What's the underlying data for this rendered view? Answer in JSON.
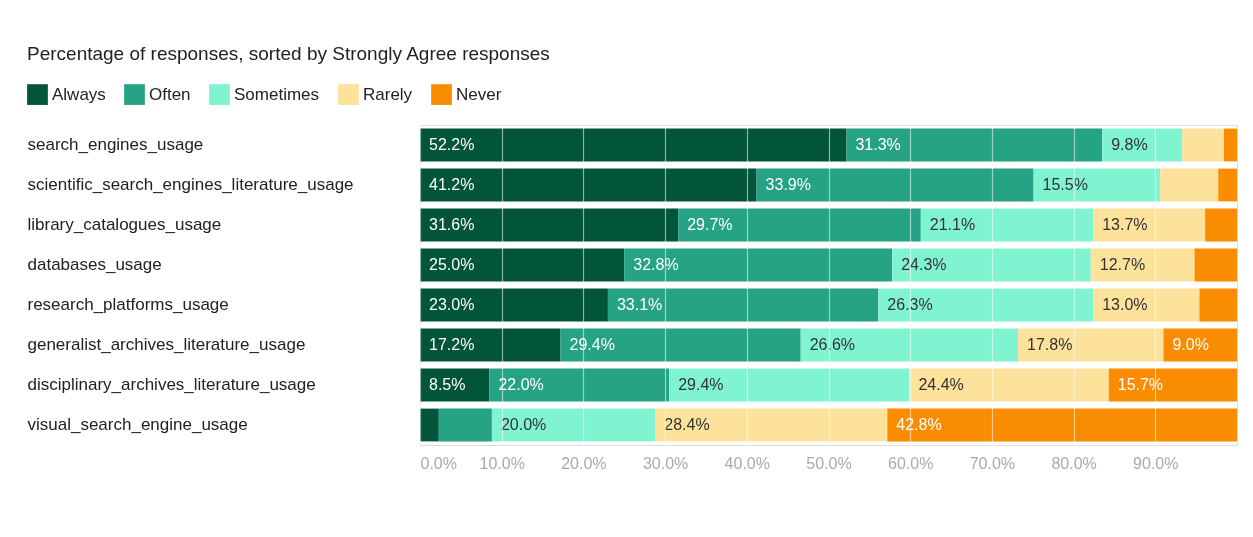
{
  "chart_data": {
    "type": "bar",
    "orientation": "horizontal",
    "stacked": true,
    "title": "Percentage of responses, sorted by Strongly Agree responses",
    "categories": [
      "search_engines_usage",
      "scientific_search_engines_literature_usage",
      "library_catalogues_usage",
      "databases_usage",
      "research_platforms_usage",
      "generalist_archives_literature_usage",
      "disciplinary_archives_literature_usage",
      "visual_search_engine_usage"
    ],
    "series": [
      {
        "name": "Always",
        "color": "#02553a",
        "values": [
          52.2,
          41.2,
          31.6,
          25.0,
          23.0,
          17.2,
          8.5,
          2.3
        ],
        "value_labels": [
          "52.2%",
          "41.2%",
          "31.6%",
          "25.0%",
          "23.0%",
          "17.2%",
          "8.5%",
          null
        ]
      },
      {
        "name": "Often",
        "color": "#26a284",
        "values": [
          31.3,
          33.9,
          29.7,
          32.8,
          33.1,
          29.4,
          22.0,
          6.5
        ],
        "value_labels": [
          "31.3%",
          "33.9%",
          "29.7%",
          "32.8%",
          "33.1%",
          "29.4%",
          "22.0%",
          null
        ]
      },
      {
        "name": "Sometimes",
        "color": "#80f4d0",
        "values": [
          9.8,
          15.5,
          21.1,
          24.3,
          26.3,
          26.6,
          29.4,
          20.0
        ],
        "value_labels": [
          "9.8%",
          "15.5%",
          "21.1%",
          "24.3%",
          "26.3%",
          "26.6%",
          "29.4%",
          "20.0%"
        ]
      },
      {
        "name": "Rarely",
        "color": "#fde29b",
        "values": [
          5.1,
          7.1,
          13.7,
          12.7,
          13.0,
          17.8,
          24.4,
          28.4
        ],
        "value_labels": [
          null,
          null,
          "13.7%",
          "12.7%",
          "13.0%",
          "17.8%",
          "24.4%",
          "28.4%"
        ]
      },
      {
        "name": "Never",
        "color": "#f98c00",
        "values": [
          1.6,
          2.3,
          3.9,
          5.2,
          4.6,
          9.0,
          15.7,
          42.8
        ],
        "value_labels": [
          null,
          null,
          null,
          null,
          null,
          "9.0%",
          "15.7%",
          "42.8%"
        ]
      }
    ],
    "xlim": [
      0,
      100
    ],
    "xticks": [
      {
        "value": 0,
        "label": "0.0%"
      },
      {
        "value": 10,
        "label": "10.0%"
      },
      {
        "value": 20,
        "label": "20.0%"
      },
      {
        "value": 30,
        "label": "30.0%"
      },
      {
        "value": 40,
        "label": "40.0%"
      },
      {
        "value": 50,
        "label": "50.0%"
      },
      {
        "value": 60,
        "label": "60.0%"
      },
      {
        "value": 70,
        "label": "70.0%"
      },
      {
        "value": 80,
        "label": "80.0%"
      },
      {
        "value": 90,
        "label": "90.0%"
      }
    ],
    "grid": "x",
    "legend": "top left"
  }
}
